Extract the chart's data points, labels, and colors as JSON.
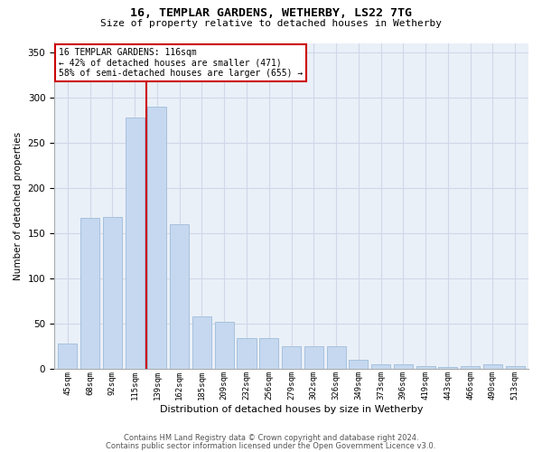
{
  "title": "16, TEMPLAR GARDENS, WETHERBY, LS22 7TG",
  "subtitle": "Size of property relative to detached houses in Wetherby",
  "xlabel": "Distribution of detached houses by size in Wetherby",
  "ylabel": "Number of detached properties",
  "categories": [
    "45sqm",
    "68sqm",
    "92sqm",
    "115sqm",
    "139sqm",
    "162sqm",
    "185sqm",
    "209sqm",
    "232sqm",
    "256sqm",
    "279sqm",
    "302sqm",
    "326sqm",
    "349sqm",
    "373sqm",
    "396sqm",
    "419sqm",
    "443sqm",
    "466sqm",
    "490sqm",
    "513sqm"
  ],
  "values": [
    28,
    167,
    168,
    278,
    290,
    160,
    58,
    52,
    34,
    34,
    25,
    25,
    25,
    10,
    5,
    5,
    3,
    2,
    3,
    5,
    3
  ],
  "bar_color": "#c5d8f0",
  "bar_edge_color": "#a0bcd8",
  "grid_color": "#d0d8e8",
  "background_color": "#eaf0f8",
  "vline_x": 3.5,
  "vline_color": "#cc0000",
  "annotation_text": "16 TEMPLAR GARDENS: 116sqm\n← 42% of detached houses are smaller (471)\n58% of semi-detached houses are larger (655) →",
  "annotation_box_color": "#ffffff",
  "annotation_box_edge": "#cc0000",
  "ylim": [
    0,
    360
  ],
  "yticks": [
    0,
    50,
    100,
    150,
    200,
    250,
    300,
    350
  ],
  "footer1": "Contains HM Land Registry data © Crown copyright and database right 2024.",
  "footer2": "Contains public sector information licensed under the Open Government Licence v3.0."
}
